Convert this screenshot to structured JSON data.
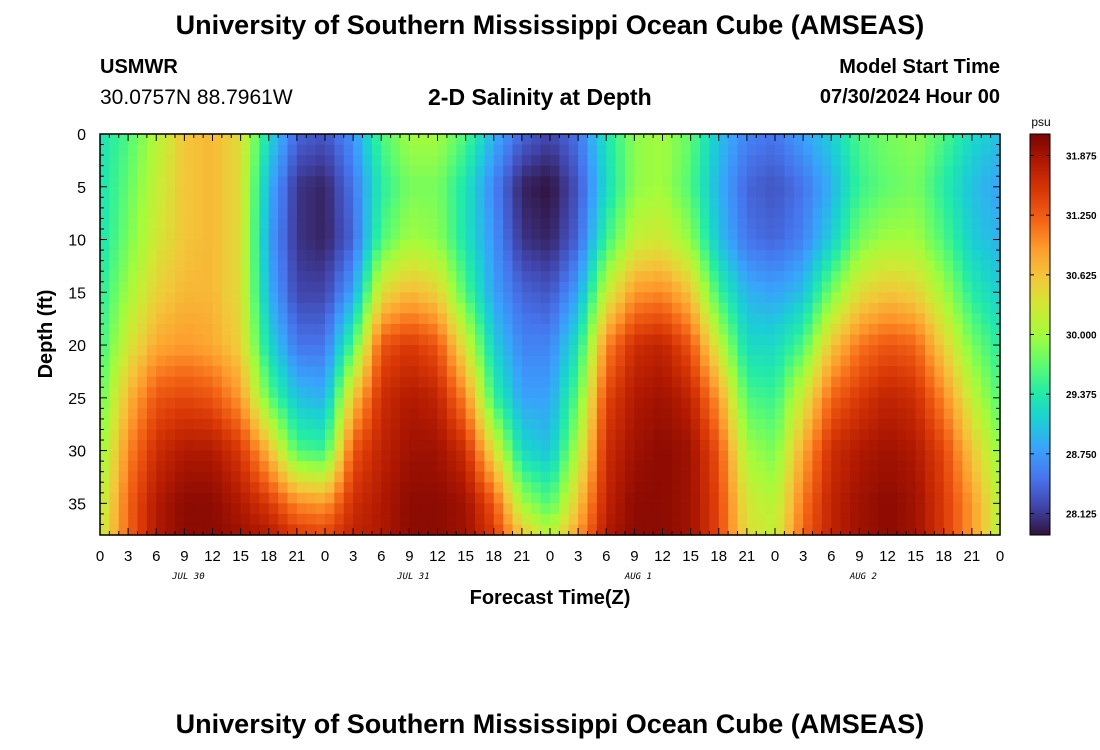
{
  "header": {
    "title": "University of Southern Mississippi Ocean Cube (AMSEAS)",
    "station": "USMWR",
    "coords": "30.0757N  88.7961W",
    "subtitle": "2-D Salinity at Depth",
    "start_label": "Model Start Time",
    "start_value": "07/30/2024 Hour 00"
  },
  "footer": {
    "title": "University of Southern Mississippi Ocean Cube (AMSEAS)"
  },
  "chart_data": {
    "type": "heatmap",
    "title": "2-D Salinity at Depth",
    "xlabel": "Forecast Time(Z)",
    "ylabel": "Depth (ft)",
    "x_ticks": [
      "0",
      "3",
      "6",
      "9",
      "12",
      "15",
      "18",
      "21",
      "0",
      "3",
      "6",
      "9",
      "12",
      "15",
      "18",
      "21",
      "0",
      "3",
      "6",
      "9",
      "12",
      "15",
      "18",
      "21",
      "0",
      "3",
      "6",
      "9",
      "12",
      "15",
      "18",
      "21",
      "0"
    ],
    "date_labels": [
      {
        "label": "JUL 30",
        "hour": 9
      },
      {
        "label": "JUL 31",
        "hour": 33
      },
      {
        "label": "AUG 1",
        "hour": 57
      },
      {
        "label": "AUG 2",
        "hour": 81
      }
    ],
    "xlim": [
      0,
      96
    ],
    "ylim": [
      0,
      38
    ],
    "y_ticks": [
      0,
      5,
      10,
      15,
      20,
      25,
      30,
      35
    ],
    "colorbar": {
      "unit": "psu",
      "min": 27.9,
      "max": 32.1,
      "ticks": [
        "31.875",
        "31.250",
        "30.625",
        "30.000",
        "29.375",
        "28.750",
        "28.125"
      ],
      "tick_values": [
        31.875,
        31.25,
        30.625,
        30.0,
        29.375,
        28.75,
        28.125
      ],
      "colors": [
        "#30123b",
        "#4145ab",
        "#4675ed",
        "#39a2fc",
        "#1bcfd4",
        "#24eca6",
        "#61fc6c",
        "#a4fc3b",
        "#d1e834",
        "#f3c63a",
        "#fe9b2d",
        "#f36315",
        "#d93806",
        "#b11901",
        "#7a0403"
      ]
    },
    "field": {
      "grid_x_hours": 1,
      "grid_depths_ft": [
        0,
        5,
        10,
        15,
        20,
        25,
        30,
        35,
        38
      ],
      "profiles": [
        {
          "hour": 0,
          "psu": [
            29.3,
            29.3,
            29.3,
            29.4,
            29.5,
            29.7,
            29.9,
            30.1,
            30.2
          ]
        },
        {
          "hour": 3,
          "psu": [
            29.6,
            29.7,
            29.8,
            30.0,
            30.3,
            30.7,
            31.0,
            31.2,
            31.2
          ]
        },
        {
          "hour": 6,
          "psu": [
            30.1,
            30.2,
            30.3,
            30.5,
            30.8,
            31.3,
            31.6,
            31.8,
            31.8
          ]
        },
        {
          "hour": 9,
          "psu": [
            30.6,
            30.6,
            30.6,
            30.7,
            30.9,
            31.4,
            31.8,
            32.0,
            32.0
          ]
        },
        {
          "hour": 12,
          "psu": [
            30.7,
            30.7,
            30.7,
            30.7,
            30.8,
            31.3,
            31.8,
            32.0,
            32.0
          ]
        },
        {
          "hour": 15,
          "psu": [
            30.4,
            30.4,
            30.4,
            30.4,
            30.5,
            30.9,
            31.5,
            31.8,
            31.9
          ]
        },
        {
          "hour": 18,
          "psu": [
            29.2,
            28.9,
            28.8,
            28.9,
            29.2,
            29.7,
            30.7,
            31.5,
            31.8
          ]
        },
        {
          "hour": 21,
          "psu": [
            28.4,
            28.1,
            28.1,
            28.2,
            28.5,
            29.0,
            29.6,
            31.0,
            31.5
          ]
        },
        {
          "hour": 24,
          "psu": [
            28.3,
            28.0,
            28.0,
            28.2,
            28.5,
            28.9,
            29.5,
            30.9,
            31.4
          ]
        },
        {
          "hour": 27,
          "psu": [
            28.7,
            28.5,
            28.4,
            28.8,
            29.6,
            30.6,
            31.3,
            31.6,
            31.7
          ]
        },
        {
          "hour": 30,
          "psu": [
            29.6,
            29.4,
            29.6,
            30.4,
            31.3,
            31.6,
            31.7,
            31.8,
            31.8
          ]
        },
        {
          "hour": 33,
          "psu": [
            30.0,
            29.8,
            30.0,
            30.7,
            31.5,
            31.8,
            31.9,
            32.0,
            32.0
          ]
        },
        {
          "hour": 36,
          "psu": [
            30.0,
            29.8,
            29.9,
            30.5,
            31.3,
            31.7,
            31.9,
            32.0,
            32.0
          ]
        },
        {
          "hour": 39,
          "psu": [
            29.6,
            29.3,
            29.3,
            29.6,
            30.3,
            31.0,
            31.6,
            31.9,
            31.9
          ]
        },
        {
          "hour": 42,
          "psu": [
            28.9,
            28.6,
            28.7,
            28.8,
            29.1,
            29.5,
            30.4,
            31.3,
            31.5
          ]
        },
        {
          "hour": 45,
          "psu": [
            28.4,
            28.0,
            28.1,
            28.4,
            28.6,
            28.8,
            29.2,
            30.0,
            30.6
          ]
        },
        {
          "hour": 48,
          "psu": [
            28.2,
            27.9,
            28.0,
            28.3,
            28.6,
            28.8,
            29.0,
            29.6,
            30.1
          ]
        },
        {
          "hour": 51,
          "psu": [
            28.5,
            28.3,
            28.4,
            28.8,
            29.3,
            29.7,
            30.1,
            30.6,
            30.9
          ]
        },
        {
          "hour": 54,
          "psu": [
            29.3,
            29.2,
            29.5,
            30.2,
            31.0,
            31.4,
            31.6,
            31.7,
            31.8
          ]
        },
        {
          "hour": 57,
          "psu": [
            29.9,
            29.9,
            30.2,
            30.9,
            31.6,
            31.8,
            31.9,
            32.0,
            32.0
          ]
        },
        {
          "hour": 60,
          "psu": [
            30.0,
            30.0,
            30.3,
            31.0,
            31.7,
            31.9,
            32.0,
            32.0,
            32.0
          ]
        },
        {
          "hour": 63,
          "psu": [
            29.7,
            29.6,
            29.9,
            30.6,
            31.3,
            31.7,
            31.9,
            31.9,
            31.9
          ]
        },
        {
          "hour": 66,
          "psu": [
            29.0,
            28.9,
            29.0,
            29.5,
            30.2,
            30.9,
            31.3,
            31.4,
            31.4
          ]
        },
        {
          "hour": 69,
          "psu": [
            28.6,
            28.4,
            28.5,
            28.9,
            29.2,
            29.6,
            30.0,
            30.3,
            30.4
          ]
        },
        {
          "hour": 72,
          "psu": [
            28.5,
            28.3,
            28.4,
            28.8,
            29.2,
            29.5,
            29.8,
            30.1,
            30.2
          ]
        },
        {
          "hour": 75,
          "psu": [
            28.8,
            28.5,
            28.6,
            29.0,
            29.6,
            30.3,
            30.8,
            31.1,
            31.2
          ]
        },
        {
          "hour": 78,
          "psu": [
            29.1,
            28.9,
            29.1,
            29.8,
            30.6,
            31.2,
            31.6,
            31.7,
            31.7
          ]
        },
        {
          "hour": 81,
          "psu": [
            29.6,
            29.5,
            29.8,
            30.4,
            31.1,
            31.5,
            31.8,
            31.9,
            31.9
          ]
        },
        {
          "hour": 84,
          "psu": [
            29.8,
            29.7,
            30.0,
            30.6,
            31.3,
            31.7,
            31.9,
            32.0,
            32.0
          ]
        },
        {
          "hour": 87,
          "psu": [
            29.9,
            29.8,
            30.0,
            30.5,
            31.2,
            31.6,
            31.8,
            31.9,
            31.9
          ]
        },
        {
          "hour": 90,
          "psu": [
            29.6,
            29.4,
            29.6,
            30.0,
            30.5,
            31.0,
            31.4,
            31.5,
            31.5
          ]
        },
        {
          "hour": 93,
          "psu": [
            29.2,
            29.0,
            29.1,
            29.4,
            29.8,
            30.2,
            30.6,
            30.9,
            30.9
          ]
        },
        {
          "hour": 96,
          "psu": [
            29.0,
            28.8,
            28.9,
            29.1,
            29.4,
            29.6,
            29.9,
            30.1,
            30.1
          ]
        }
      ]
    }
  }
}
